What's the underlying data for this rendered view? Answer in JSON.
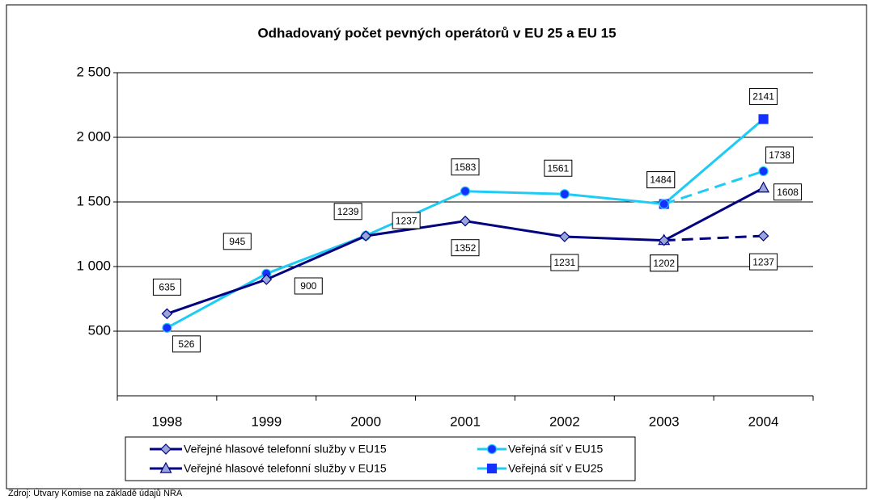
{
  "chart_data": {
    "type": "line",
    "title": "Odhadovaný počet pevných operátorů v EU 25 a EU 15",
    "source": "Zdroj: Útvary Komise na základě údajů NRA",
    "categories": [
      "1998",
      "1999",
      "2000",
      "2001",
      "2002",
      "2003",
      "2004"
    ],
    "ylim": [
      0,
      2500
    ],
    "yticks": [
      {
        "value": 500,
        "label": "500"
      },
      {
        "value": 1000,
        "label": "1 000"
      },
      {
        "value": 1500,
        "label": "1 500"
      },
      {
        "value": 2000,
        "label": "2 000"
      },
      {
        "value": 2500,
        "label": "2 500"
      }
    ],
    "grid": true,
    "series": [
      {
        "name": "Veřejné hlasové telefonní služby v EU15",
        "color": "#000080",
        "marker": "diamond",
        "marker_fill": "#9aa6da",
        "last_segment_dashed": true,
        "values": [
          635,
          900,
          1237,
          1352,
          1231,
          1202,
          1237
        ]
      },
      {
        "name": "Veřejná síť v EU15",
        "color": "#1ecbf5",
        "marker": "circle",
        "marker_fill": "#1530ff",
        "last_segment_dashed": true,
        "values": [
          526,
          945,
          1239,
          1583,
          1561,
          1484,
          1738
        ]
      },
      {
        "name": "Veřejné hlasové telefonní služby v EU15",
        "color": "#000080",
        "marker": "triangle",
        "marker_fill": "#9aa6da",
        "last_segment_dashed": false,
        "values": [
          null,
          null,
          null,
          null,
          null,
          1202,
          1608
        ]
      },
      {
        "name": "Veřejná síť v EU25",
        "color": "#1ecbf5",
        "marker": "square",
        "marker_fill": "#1530ff",
        "last_segment_dashed": false,
        "values": [
          null,
          null,
          null,
          null,
          null,
          1484,
          2141
        ]
      }
    ]
  }
}
